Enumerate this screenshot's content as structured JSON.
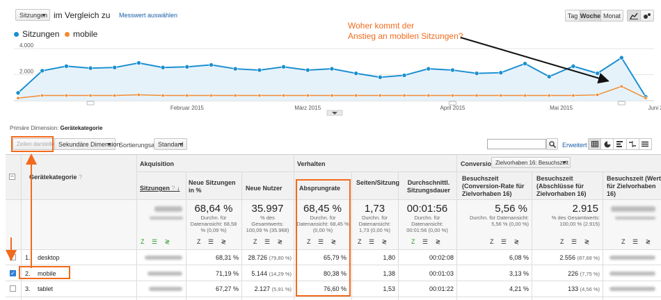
{
  "top": {
    "metric_select": "Sitzungen",
    "compare_label": "im Vergleich zu",
    "select_metric_link": "Messwert auswählen",
    "period_buttons": [
      "Tag",
      "Woche",
      "Monat"
    ]
  },
  "legend": [
    {
      "name": "Sitzungen",
      "color": "#1a8fd1"
    },
    {
      "name": "mobile",
      "color": "#f28b30"
    }
  ],
  "annotation": {
    "line1": "Woher kommt der",
    "line2": "Anstieg an mobilen Sitzungen?"
  },
  "chart_data": {
    "type": "line",
    "ytick_labels": [
      "4.000",
      "2.000"
    ],
    "ylim": [
      0,
      4800
    ],
    "x_labels": [
      "Februar 2015",
      "März 2015",
      "April 2015",
      "Mai 2015",
      "Juni 2015"
    ],
    "series": [
      {
        "name": "Sitzungen",
        "values": [
          600,
          2300,
          2650,
          2500,
          2550,
          2900,
          2550,
          2600,
          2750,
          2450,
          2350,
          2600,
          2350,
          2450,
          2100,
          1800,
          1950,
          2450,
          2350,
          2100,
          2150,
          2850,
          1850,
          2650,
          2100,
          3300,
          300
        ]
      },
      {
        "name": "mobile",
        "values": [
          200,
          400,
          400,
          400,
          400,
          450,
          400,
          400,
          400,
          400,
          400,
          400,
          400,
          400,
          400,
          400,
          400,
          400,
          400,
          400,
          400,
          400,
          400,
          400,
          450,
          1100,
          200
        ]
      }
    ]
  },
  "dimension": {
    "label": "Primäre Dimension:",
    "value": "Gerätekategorie"
  },
  "toolbar": {
    "plot_rows": "Zeilen darstellen",
    "secondary_dim": "Sekundäre Dimension",
    "sort_label": "Sortierungsart:",
    "sort_value": "Standard",
    "advanced": "Erweitert"
  },
  "table": {
    "dim_header": "Gerätekategorie",
    "groups": {
      "acq": "Akquisition",
      "beh": "Verhalten",
      "conv": "Conversions",
      "goal_select": "Zielvorhaben 16: Besuchszeit"
    },
    "headers": [
      "Sitzungen",
      "Neue Sitzungen in %",
      "Neue Nutzer",
      "Absprungrate",
      "Seiten/Sitzung",
      "Durchschnittl. Sitzungsdauer",
      "Besuchszeit (Conversion-Rate für Zielvorhaben 16)",
      "Besuchszeit (Abschlüsse für Zielvorhaben 16)",
      "Besuchszeit (Wert für Zielvorhaben 16)"
    ],
    "totals": {
      "new_pct": "68,64 %",
      "new_pct_sub": "Durchn. für Datenansicht: 68,58 % (0,09 %)",
      "new_users": "35.997",
      "new_users_sub": "% des Gesamtwerts: 100,09 % (35.968)",
      "bounce": "68,45 %",
      "bounce_sub": "Durchn. für Datenansicht: 68,45 % (0,00 %)",
      "pages": "1,73",
      "pages_sub": "Durchn. für Datenansicht: 1,73 (0,00 %)",
      "duration": "00:01:56",
      "duration_sub": "Durchn. für Datenansicht: 00:01:56 (0,00 %)",
      "conv_rate": "5,56 %",
      "conv_rate_sub": "Durchn. für Datenansicht: 5,56 % (0,00 %)",
      "goals": "2.915",
      "goals_sub": "% des Gesamtwerts: 100,00 % (2.915)"
    },
    "rows": [
      {
        "num": "1.",
        "name": "desktop",
        "new_pct": "68,31 %",
        "new_users": "28.726",
        "new_users_pct": "(79,80 %)",
        "bounce": "65,79 %",
        "pages": "1,80",
        "duration": "00:02:08",
        "conv": "6,08 %",
        "goals": "2.556",
        "goals_pct": "(87,68 %)"
      },
      {
        "num": "2.",
        "name": "mobile",
        "new_pct": "71,19 %",
        "new_users": "5.144",
        "new_users_pct": "(14,29 %)",
        "bounce": "80,38 %",
        "pages": "1,38",
        "duration": "00:01:03",
        "conv": "3,13 %",
        "goals": "226",
        "goals_pct": "(7,75 %)"
      },
      {
        "num": "3.",
        "name": "tablet",
        "new_pct": "67,27 %",
        "new_users": "2.127",
        "new_users_pct": "(5,91 %)",
        "bounce": "76,60 %",
        "pages": "1,53",
        "duration": "00:01:22",
        "conv": "4,21 %",
        "goals": "133",
        "goals_pct": "(4,56 %)"
      }
    ]
  }
}
